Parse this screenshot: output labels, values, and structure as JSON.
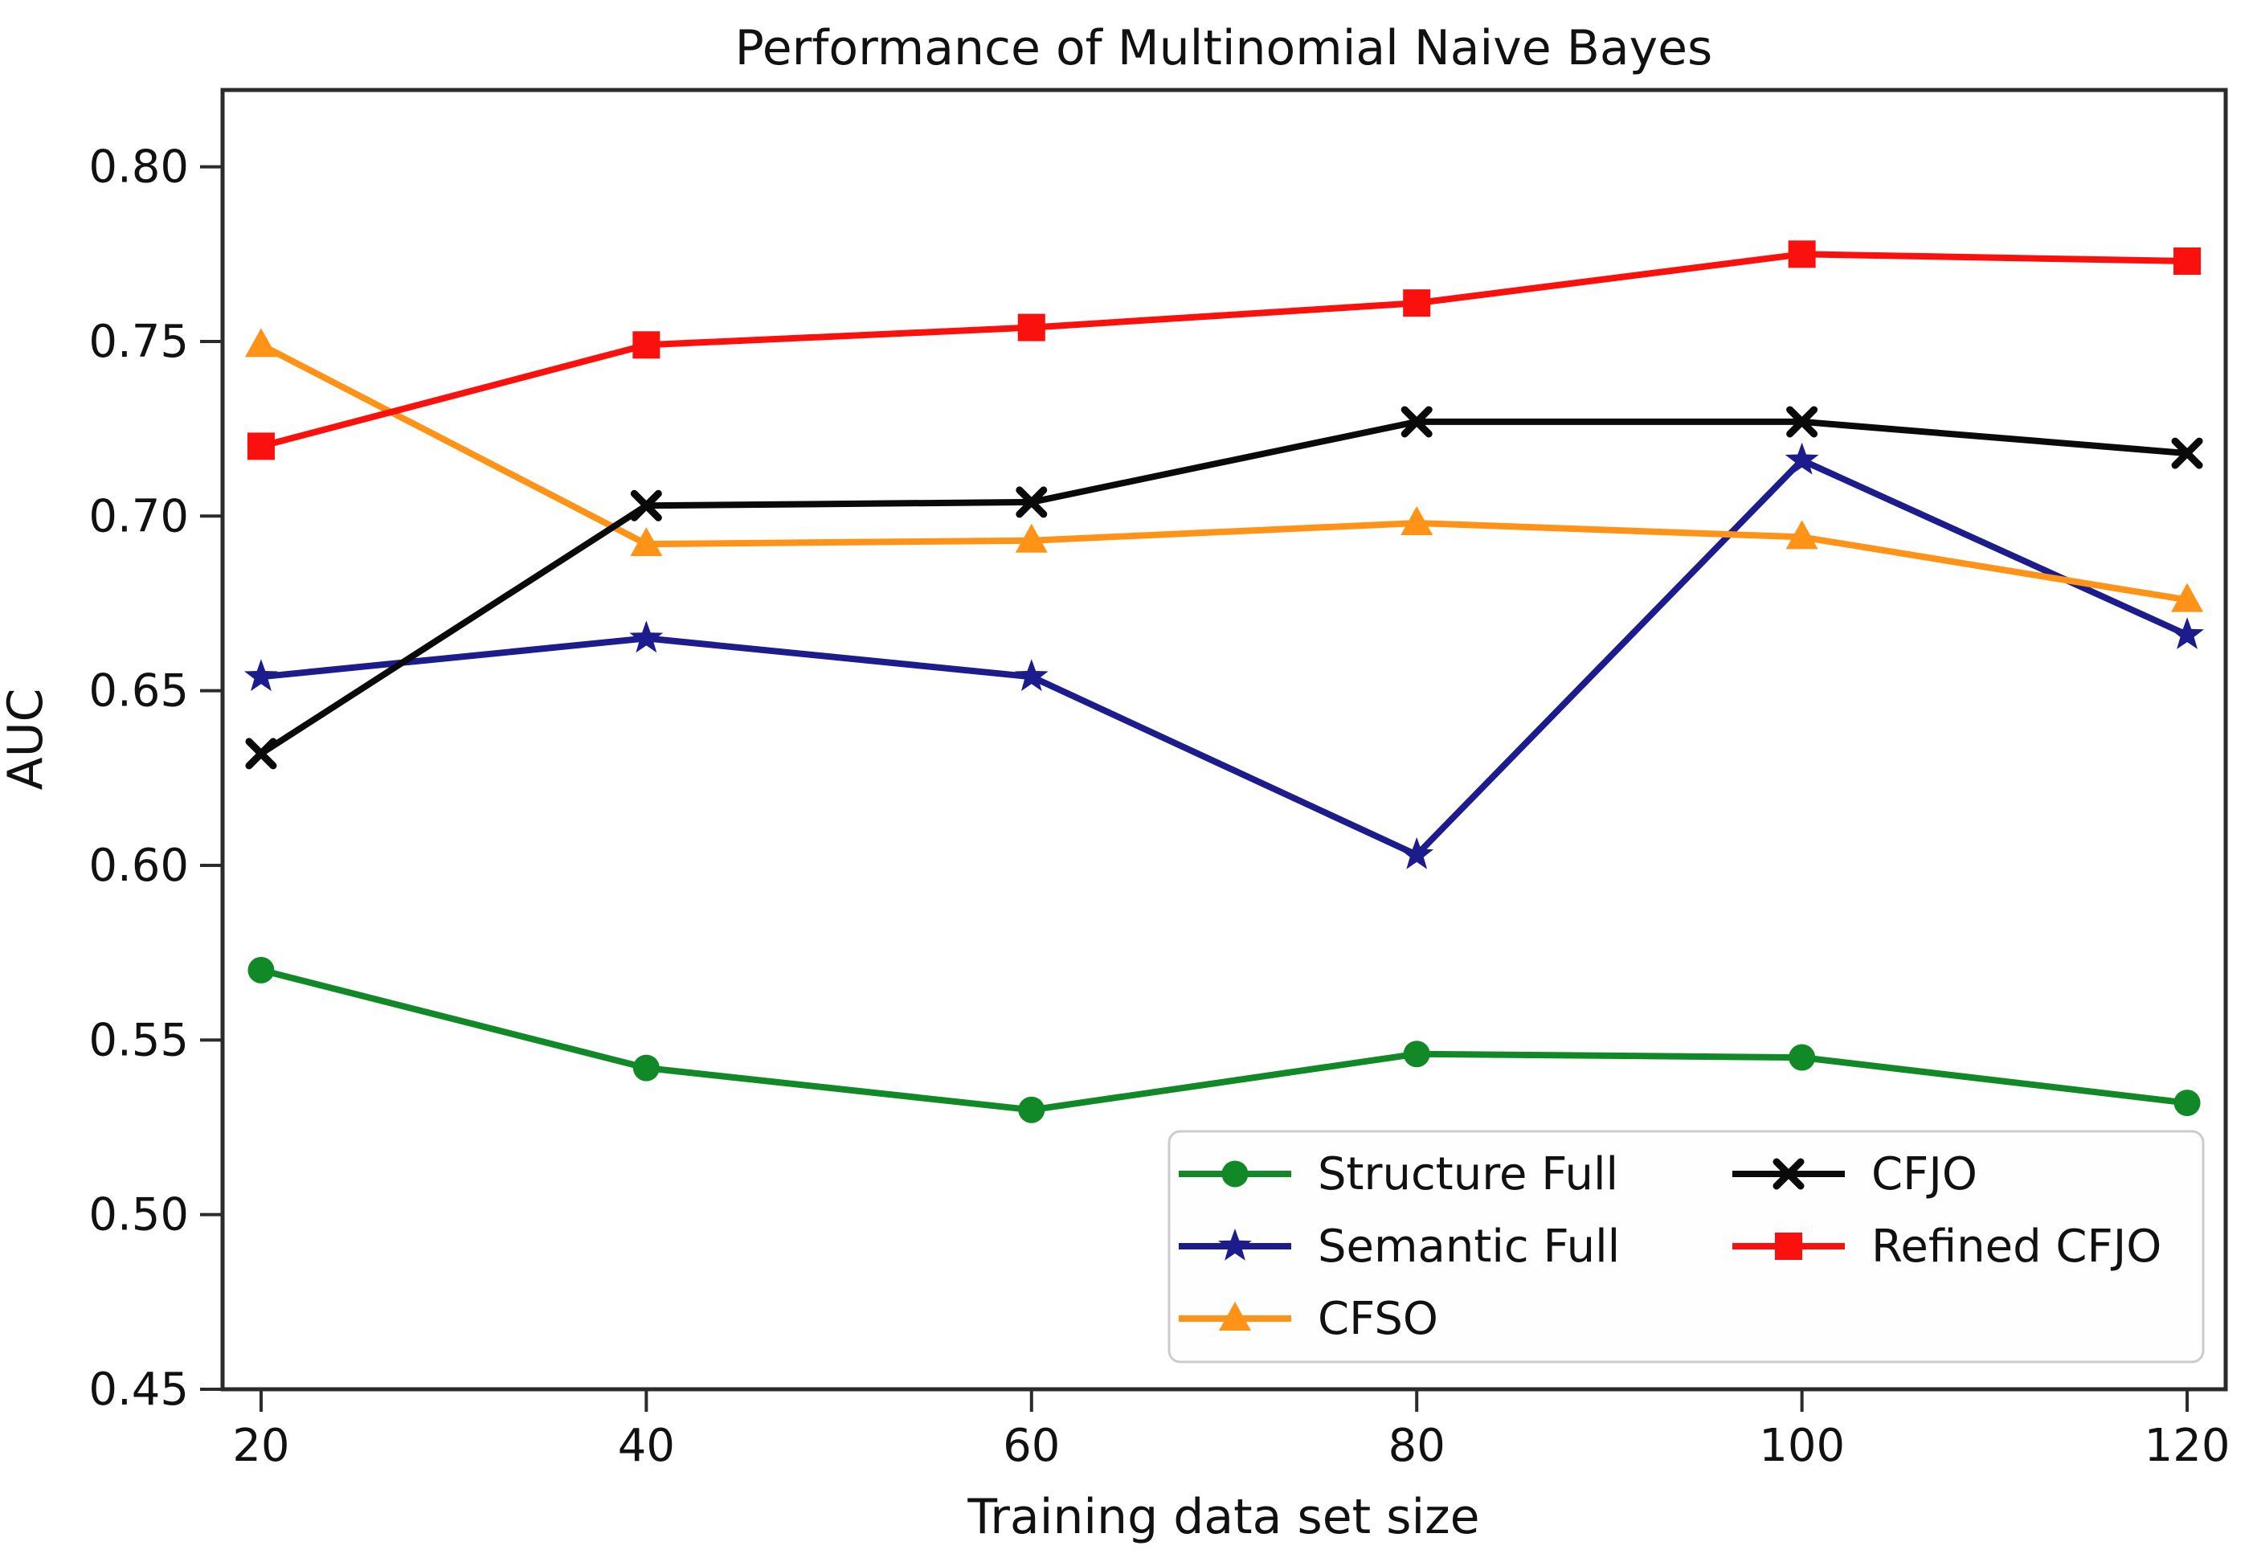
{
  "figure": {
    "background": "#ffffff",
    "spine_color": "#2b2b2b",
    "text_color": "#111111"
  },
  "chart_data": {
    "type": "line",
    "title": "Performance of Multinomial Naive Bayes",
    "xlabel": "Training data set size",
    "ylabel": "AUC",
    "grid": false,
    "xlim": [
      18,
      122
    ],
    "ylim": [
      0.45,
      0.822
    ],
    "xticks": [
      20,
      40,
      60,
      80,
      100,
      120
    ],
    "xtick_labels": [
      "20",
      "40",
      "60",
      "80",
      "100",
      "120"
    ],
    "yticks": [
      0.45,
      0.5,
      0.55,
      0.6,
      0.65,
      0.7,
      0.75,
      0.8
    ],
    "ytick_labels": [
      "0.45",
      "0.50",
      "0.55",
      "0.60",
      "0.65",
      "0.70",
      "0.75",
      "0.80"
    ],
    "x": [
      20,
      40,
      60,
      80,
      100,
      120
    ],
    "series": [
      {
        "name": "Structure Full",
        "color": "#128927",
        "marker": "circle",
        "values": [
          0.57,
          0.542,
          0.53,
          0.546,
          0.545,
          0.532
        ]
      },
      {
        "name": "Semantic Full",
        "color": "#1C1C8C",
        "marker": "star",
        "values": [
          0.654,
          0.665,
          0.654,
          0.603,
          0.716,
          0.666
        ]
      },
      {
        "name": "CFSO",
        "color": "#FF9318",
        "marker": "triangle",
        "values": [
          0.749,
          0.692,
          0.693,
          0.698,
          0.694,
          0.676
        ]
      },
      {
        "name": "CFJO",
        "color": "#0A0A0A",
        "marker": "x",
        "values": [
          0.632,
          0.703,
          0.704,
          0.727,
          0.727,
          0.718
        ]
      },
      {
        "name": "Refined CFJO",
        "color": "#FA100D",
        "marker": "square",
        "values": [
          0.72,
          0.749,
          0.754,
          0.761,
          0.775,
          0.773
        ]
      }
    ],
    "legend": {
      "position": "lower right",
      "columns": [
        [
          "Structure Full",
          "Semantic Full",
          "CFSO"
        ],
        [
          "CFJO",
          "Refined CFJO"
        ]
      ],
      "background": "#FEFEFE",
      "border_color": "#CCCCCC"
    }
  }
}
